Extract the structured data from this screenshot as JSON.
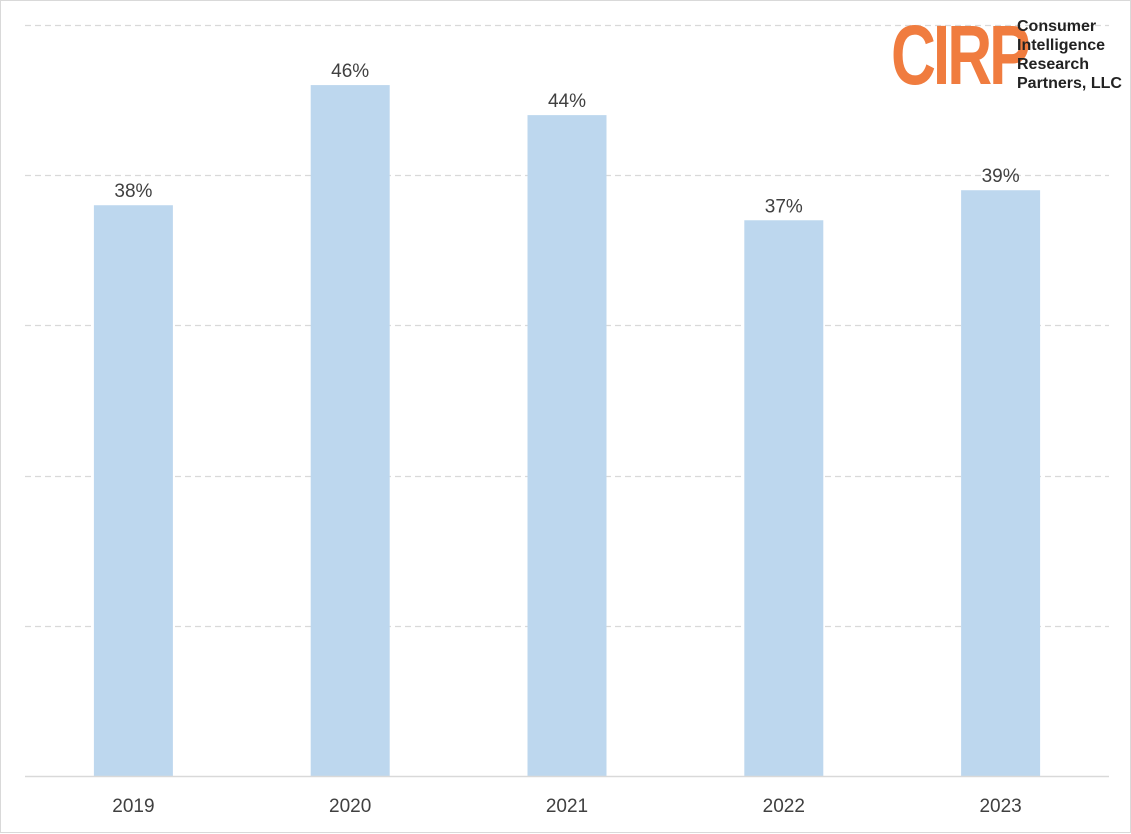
{
  "chart_data": {
    "type": "bar",
    "categories": [
      "2019",
      "2020",
      "2021",
      "2022",
      "2023"
    ],
    "values": [
      38,
      46,
      44,
      37,
      39
    ],
    "data_labels": [
      "38%",
      "46%",
      "44%",
      "37%",
      "39%"
    ],
    "title": "",
    "xlabel": "",
    "ylabel": "",
    "ylim": [
      0,
      50
    ],
    "y_gridlines": [
      10,
      20,
      30,
      40,
      50
    ],
    "grid": "horizontal dashed",
    "legend": "none",
    "colors": {
      "bar": "#bdd7ee",
      "grid": "#d9d9d9",
      "axis": "#d9d9d9",
      "label_text": "#404040"
    }
  },
  "logo": {
    "mark": "CIRP",
    "lines": [
      "Consumer",
      "Intelligence",
      "Research",
      "Partners, LLC"
    ],
    "color": "#f07c3f"
  }
}
